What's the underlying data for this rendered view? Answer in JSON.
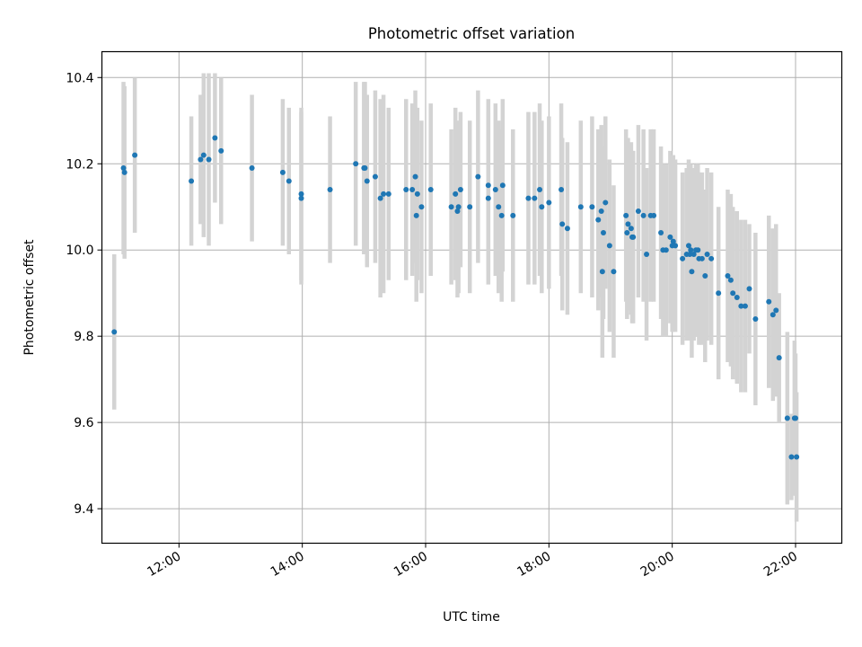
{
  "chart_data": {
    "type": "scatter",
    "title": "Photometric offset variation",
    "xlabel": "UTC time",
    "ylabel": "Photometric offset",
    "xlim": [
      "10:45",
      "22:45"
    ],
    "ylim": [
      9.32,
      10.46
    ],
    "x_ticks": [
      "12:00",
      "14:00",
      "16:00",
      "18:00",
      "20:00",
      "22:00"
    ],
    "y_ticks": [
      9.4,
      9.6,
      9.8,
      10.0,
      10.2,
      10.4
    ],
    "y_tick_labels": [
      "9.4",
      "9.6",
      "9.8",
      "10.0",
      "10.2",
      "10.4"
    ],
    "grid": true,
    "colors": {
      "marker": "#1f77b4",
      "errorbar": "#d3d3d3",
      "grid": "#b0b0b0"
    },
    "series": [
      {
        "x": [
          "10:57",
          "11:06",
          "11:07",
          "11:17",
          "12:12",
          "12:21",
          "12:24",
          "12:29",
          "12:35",
          "12:41",
          "13:11",
          "13:41",
          "13:47",
          "13:59",
          "13:59",
          "14:27",
          "14:52",
          "15:01",
          "15:00",
          "15:03",
          "15:11",
          "15:16",
          "15:19",
          "15:24",
          "15:41",
          "15:47",
          "15:50",
          "15:51",
          "15:52",
          "15:56",
          "16:05",
          "16:25",
          "16:29",
          "16:31",
          "16:32",
          "16:34",
          "16:43",
          "16:51",
          "17:01",
          "17:01",
          "17:08",
          "17:11",
          "17:14",
          "17:15",
          "17:25",
          "17:40",
          "17:46",
          "17:51",
          "17:53",
          "18:00",
          "18:12",
          "18:13",
          "18:18",
          "18:31",
          "18:42",
          "18:48",
          "18:51",
          "18:52",
          "18:53",
          "18:55",
          "18:59",
          "19:03",
          "19:15",
          "19:16",
          "19:17",
          "19:20",
          "19:21",
          "19:22",
          "19:27",
          "19:32",
          "19:35",
          "19:39",
          "19:42",
          "19:49",
          "19:51",
          "19:54",
          "19:58",
          "20:00",
          "20:01",
          "20:03",
          "20:10",
          "20:14",
          "20:16",
          "20:17",
          "20:18",
          "20:19",
          "20:21",
          "20:23",
          "20:25",
          "20:26",
          "20:29",
          "20:32",
          "20:34",
          "20:38",
          "20:45",
          "20:54",
          "20:57",
          "20:59",
          "21:03",
          "21:07",
          "21:11",
          "21:15",
          "21:21",
          "21:34",
          "21:38",
          "21:41",
          "21:44",
          "21:52",
          "21:56",
          "21:59",
          "22:00",
          "22:01"
        ],
        "y": [
          9.81,
          10.19,
          10.18,
          10.22,
          10.16,
          10.21,
          10.22,
          10.21,
          10.26,
          10.23,
          10.19,
          10.18,
          10.16,
          10.13,
          10.12,
          10.14,
          10.2,
          10.19,
          10.19,
          10.16,
          10.17,
          10.12,
          10.13,
          10.13,
          10.14,
          10.14,
          10.17,
          10.08,
          10.13,
          10.1,
          10.14,
          10.1,
          10.13,
          10.09,
          10.1,
          10.14,
          10.1,
          10.17,
          10.12,
          10.15,
          10.14,
          10.1,
          10.08,
          10.15,
          10.08,
          10.12,
          10.12,
          10.14,
          10.1,
          10.11,
          10.14,
          10.06,
          10.05,
          10.1,
          10.1,
          10.07,
          10.09,
          9.95,
          10.04,
          10.11,
          10.01,
          9.95,
          10.08,
          10.04,
          10.06,
          10.05,
          10.03,
          10.03,
          10.09,
          10.08,
          9.99,
          10.08,
          10.08,
          10.04,
          10.0,
          10.0,
          10.03,
          10.01,
          10.02,
          10.01,
          9.98,
          9.99,
          10.01,
          9.99,
          10.0,
          9.95,
          9.99,
          10.0,
          10.0,
          9.98,
          9.98,
          9.94,
          9.99,
          9.98,
          9.9,
          9.94,
          9.93,
          9.9,
          9.89,
          9.87,
          9.87,
          9.91,
          9.84,
          9.88,
          9.85,
          9.86,
          9.75,
          9.61,
          9.52,
          9.61,
          9.61,
          9.52
        ],
        "yerr": [
          0.18,
          0.2,
          0.2,
          0.18,
          0.15,
          0.15,
          0.19,
          0.2,
          0.15,
          0.17,
          0.17,
          0.17,
          0.17,
          0.2,
          0.2,
          0.17,
          0.19,
          0.2,
          0.2,
          0.2,
          0.2,
          0.23,
          0.23,
          0.2,
          0.21,
          0.2,
          0.2,
          0.2,
          0.2,
          0.2,
          0.2,
          0.18,
          0.2,
          0.2,
          0.2,
          0.18,
          0.2,
          0.2,
          0.2,
          0.2,
          0.2,
          0.2,
          0.2,
          0.2,
          0.2,
          0.2,
          0.2,
          0.2,
          0.2,
          0.2,
          0.2,
          0.2,
          0.2,
          0.2,
          0.21,
          0.21,
          0.2,
          0.2,
          0.2,
          0.2,
          0.2,
          0.2,
          0.2,
          0.2,
          0.2,
          0.2,
          0.2,
          0.2,
          0.2,
          0.2,
          0.2,
          0.2,
          0.2,
          0.2,
          0.2,
          0.2,
          0.2,
          0.2,
          0.2,
          0.2,
          0.2,
          0.2,
          0.2,
          0.2,
          0.2,
          0.2,
          0.2,
          0.2,
          0.2,
          0.2,
          0.2,
          0.2,
          0.2,
          0.2,
          0.2,
          0.2,
          0.2,
          0.2,
          0.2,
          0.2,
          0.2,
          0.15,
          0.2,
          0.2,
          0.2,
          0.2,
          0.15,
          0.2,
          0.1,
          0.18,
          0.15,
          0.15
        ]
      }
    ]
  }
}
